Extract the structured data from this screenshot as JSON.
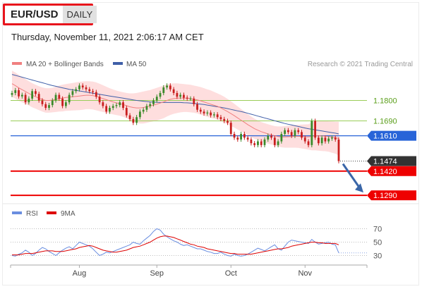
{
  "header": {
    "pair": "EUR/USD",
    "period": "DAILY",
    "timestamp": "Thursday, November 11, 2021 2:06:17 AM CET"
  },
  "colors": {
    "title_border": "#e8141c",
    "ma20": "#f08080",
    "ma50": "#3f5fa8",
    "bands_fill": "#fdd3d3",
    "green_level": "#9acd59",
    "green_label": "#5a9e1a",
    "blue_level": "#2864d8",
    "red_level": "#ee0000",
    "rsi": "#6a8ee0",
    "rsi_ma": "#dd0000",
    "candle_up": "#3a8a2a",
    "candle_down": "#c81e1e"
  },
  "chart_data": {
    "type": "candlestick",
    "legend": {
      "ma20_label": "MA 20 + Bollinger Bands",
      "ma50_label": "MA 50",
      "credit": "Research © 2021 Trading Central"
    },
    "ylim": [
      1.126,
      1.198
    ],
    "x_ticks": [
      {
        "label": "Aug",
        "index": 20
      },
      {
        "label": "Sep",
        "index": 43
      },
      {
        "label": "Oct",
        "index": 65
      },
      {
        "label": "Nov",
        "index": 87
      }
    ],
    "levels": [
      {
        "value": 1.18,
        "label": "1.1800",
        "kind": "resistance"
      },
      {
        "value": 1.169,
        "label": "1.1690",
        "kind": "resistance"
      },
      {
        "value": 1.161,
        "label": "1.1610",
        "kind": "pivot"
      },
      {
        "value": 1.142,
        "label": "1.1420",
        "kind": "support"
      },
      {
        "value": 1.129,
        "label": "1.1290",
        "kind": "support"
      }
    ],
    "last_price": {
      "value": 1.1474,
      "label": "1.1474"
    },
    "close": [
      1.184,
      1.1855,
      1.1822,
      1.183,
      1.179,
      1.181,
      1.185,
      1.1835,
      1.18,
      1.178,
      1.176,
      1.1775,
      1.18,
      1.183,
      1.181,
      1.177,
      1.179,
      1.183,
      1.185,
      1.186,
      1.188,
      1.187,
      1.186,
      1.185,
      1.1845,
      1.182,
      1.179,
      1.177,
      1.174,
      1.176,
      1.177,
      1.1775,
      1.179,
      1.176,
      1.172,
      1.17,
      1.168,
      1.171,
      1.174,
      1.175,
      1.177,
      1.178,
      1.18,
      1.182,
      1.184,
      1.187,
      1.188,
      1.186,
      1.184,
      1.182,
      1.183,
      1.1815,
      1.181,
      1.181,
      1.178,
      1.175,
      1.174,
      1.173,
      1.1735,
      1.172,
      1.1725,
      1.171,
      1.17,
      1.169,
      1.168,
      1.162,
      1.16,
      1.159,
      1.162,
      1.16,
      1.159,
      1.157,
      1.156,
      1.158,
      1.156,
      1.159,
      1.161,
      1.16,
      1.156,
      1.158,
      1.162,
      1.164,
      1.163,
      1.161,
      1.164,
      1.163,
      1.16,
      1.158,
      1.156,
      1.169,
      1.16,
      1.157,
      1.16,
      1.158,
      1.1595,
      1.16,
      1.159,
      1.1474
    ],
    "ma20": [
      1.189,
      1.188,
      1.1868,
      1.1858,
      1.1848,
      1.1838,
      1.1828,
      1.182,
      1.1812,
      1.1805,
      1.18,
      1.18,
      1.1802,
      1.1806,
      1.181,
      1.1813,
      1.1816,
      1.1818,
      1.182,
      1.1822,
      1.1824,
      1.1826,
      1.1828,
      1.1828,
      1.1826,
      1.1822,
      1.1816,
      1.181,
      1.1804,
      1.1798,
      1.1792,
      1.1787,
      1.1783,
      1.1778,
      1.1772,
      1.1766,
      1.1762,
      1.176,
      1.176,
      1.1762,
      1.1766,
      1.177,
      1.1775,
      1.178,
      1.1786,
      1.1792,
      1.18,
      1.1806,
      1.181,
      1.1812,
      1.1813,
      1.1813,
      1.1812,
      1.181,
      1.1807,
      1.1803,
      1.1798,
      1.1792,
      1.1786,
      1.178,
      1.1774,
      1.1768,
      1.176,
      1.175,
      1.174,
      1.1729,
      1.1718,
      1.1706,
      1.1694,
      1.1682,
      1.167,
      1.1659,
      1.1648,
      1.164,
      1.1632,
      1.1626,
      1.162,
      1.1615,
      1.161,
      1.1606,
      1.1604,
      1.1604,
      1.1605,
      1.1606,
      1.1607,
      1.1607,
      1.1606,
      1.1605,
      1.1604,
      1.1607,
      1.161,
      1.161,
      1.1609,
      1.1608,
      1.1606,
      1.1603,
      1.16,
      1.1595
    ],
    "bb_upper": [
      1.196,
      1.195,
      1.1938,
      1.1926,
      1.1914,
      1.1903,
      1.1893,
      1.1884,
      1.1876,
      1.187,
      1.1866,
      1.1866,
      1.1868,
      1.1874,
      1.188,
      1.1885,
      1.1888,
      1.1891,
      1.1894,
      1.1897,
      1.19,
      1.1902,
      1.1903,
      1.1903,
      1.1901,
      1.1897,
      1.189,
      1.1882,
      1.1874,
      1.1866,
      1.1859,
      1.1853,
      1.1848,
      1.1844,
      1.184,
      1.1838,
      1.1838,
      1.184,
      1.1844,
      1.1848,
      1.1852,
      1.1856,
      1.1862,
      1.1868,
      1.1874,
      1.188,
      1.1886,
      1.189,
      1.1892,
      1.1892,
      1.189,
      1.1888,
      1.1886,
      1.1884,
      1.188,
      1.1876,
      1.1872,
      1.1866,
      1.186,
      1.1854,
      1.1846,
      1.1838,
      1.183,
      1.182,
      1.1808,
      1.1795,
      1.1782,
      1.1768,
      1.1754,
      1.174,
      1.1726,
      1.1714,
      1.1702,
      1.1692,
      1.1684,
      1.1678,
      1.1672,
      1.1667,
      1.1662,
      1.166,
      1.166,
      1.1662,
      1.1664,
      1.1666,
      1.1668,
      1.1669,
      1.167,
      1.1671,
      1.1672,
      1.1682,
      1.1688,
      1.169,
      1.169,
      1.1689,
      1.1688,
      1.1687,
      1.1686,
      1.1686
    ],
    "bb_lower": [
      1.182,
      1.181,
      1.1798,
      1.179,
      1.1782,
      1.1773,
      1.1763,
      1.1756,
      1.1748,
      1.174,
      1.1734,
      1.1734,
      1.1736,
      1.1738,
      1.174,
      1.1741,
      1.1744,
      1.1745,
      1.1746,
      1.1747,
      1.1748,
      1.175,
      1.1753,
      1.1753,
      1.1751,
      1.1747,
      1.1742,
      1.1738,
      1.1734,
      1.173,
      1.1725,
      1.1721,
      1.1718,
      1.1712,
      1.1704,
      1.1694,
      1.1686,
      1.168,
      1.1676,
      1.1676,
      1.168,
      1.1684,
      1.1688,
      1.1692,
      1.1698,
      1.1704,
      1.1714,
      1.1722,
      1.1728,
      1.1732,
      1.1736,
      1.1738,
      1.1738,
      1.1736,
      1.1734,
      1.173,
      1.1724,
      1.1718,
      1.1712,
      1.1706,
      1.1702,
      1.1698,
      1.169,
      1.168,
      1.1672,
      1.1663,
      1.1654,
      1.1644,
      1.1634,
      1.1624,
      1.1614,
      1.1604,
      1.1594,
      1.1588,
      1.158,
      1.1574,
      1.1568,
      1.1563,
      1.1558,
      1.1552,
      1.1548,
      1.1546,
      1.1546,
      1.1546,
      1.1546,
      1.1545,
      1.1542,
      1.1539,
      1.1536,
      1.1532,
      1.1532,
      1.153,
      1.1528,
      1.1527,
      1.1524,
      1.1519,
      1.1514,
      1.1504
    ],
    "ma50": [
      1.194,
      1.1935,
      1.193,
      1.1925,
      1.192,
      1.1915,
      1.191,
      1.1905,
      1.19,
      1.1895,
      1.189,
      1.1885,
      1.188,
      1.1876,
      1.1872,
      1.1868,
      1.1864,
      1.186,
      1.1857,
      1.1854,
      1.1851,
      1.1848,
      1.1845,
      1.1842,
      1.1839,
      1.1836,
      1.1833,
      1.183,
      1.1827,
      1.1824,
      1.1821,
      1.1818,
      1.1815,
      1.1812,
      1.1809,
      1.1806,
      1.1803,
      1.18,
      1.1798,
      1.1796,
      1.1794,
      1.1792,
      1.1791,
      1.179,
      1.1789,
      1.1789,
      1.1789,
      1.1789,
      1.1789,
      1.1789,
      1.1789,
      1.1788,
      1.1787,
      1.1786,
      1.1784,
      1.1782,
      1.178,
      1.1778,
      1.1775,
      1.1772,
      1.1769,
      1.1766,
      1.1763,
      1.176,
      1.1756,
      1.1752,
      1.1748,
      1.1744,
      1.174,
      1.1736,
      1.1731,
      1.1726,
      1.1721,
      1.1716,
      1.1711,
      1.1706,
      1.1701,
      1.1696,
      1.1691,
      1.1686,
      1.1681,
      1.1676,
      1.1672,
      1.1668,
      1.1664,
      1.166,
      1.1656,
      1.1652,
      1.1648,
      1.1645,
      1.1642,
      1.1639,
      1.1636,
      1.1633,
      1.163,
      1.1627,
      1.1624,
      1.162
    ],
    "rsi_panel": {
      "legend": {
        "rsi_label": "RSI",
        "ma_label": "9MA"
      },
      "ylim": [
        20,
        80
      ],
      "levels": [
        {
          "value": 70,
          "label": "70"
        },
        {
          "value": 50,
          "label": "50"
        },
        {
          "value": 30,
          "label": "30"
        }
      ],
      "rsi": [
        30,
        29,
        32,
        34,
        38,
        35,
        30,
        33,
        38,
        42,
        40,
        36,
        33,
        30,
        34,
        38,
        41,
        43,
        40,
        45,
        50,
        48,
        46,
        44,
        40,
        35,
        30,
        32,
        35,
        34,
        36,
        38,
        40,
        42,
        44,
        46,
        50,
        48,
        47,
        52,
        56,
        60,
        66,
        70,
        68,
        62,
        58,
        55,
        52,
        50,
        47,
        45,
        46,
        44,
        42,
        40,
        40,
        38,
        36,
        35,
        33,
        33,
        35,
        32,
        30,
        29,
        32,
        30,
        29,
        30,
        32,
        35,
        38,
        41,
        39,
        37,
        40,
        43,
        46,
        40,
        38,
        44,
        50,
        53,
        52,
        51,
        50,
        49,
        48,
        54,
        50,
        47,
        48,
        49,
        50,
        47,
        46,
        34
      ],
      "rsi_ma": [
        31,
        31,
        31,
        32,
        33,
        33,
        33,
        34,
        35,
        36,
        37,
        37,
        37,
        36,
        36,
        36,
        37,
        38,
        39,
        40,
        42,
        43,
        44,
        45,
        44,
        42,
        40,
        38,
        37,
        36,
        35,
        35,
        36,
        37,
        38,
        40,
        42,
        43,
        44,
        46,
        48,
        50,
        53,
        56,
        58,
        59,
        59,
        58,
        57,
        55,
        53,
        51,
        49,
        47,
        46,
        44,
        43,
        42,
        40,
        39,
        38,
        37,
        36,
        35,
        34,
        33,
        33,
        32,
        32,
        32,
        32,
        32,
        33,
        34,
        35,
        36,
        37,
        38,
        39,
        40,
        40,
        41,
        42,
        44,
        45,
        46,
        47,
        48,
        49,
        50,
        50,
        49,
        49,
        48,
        48,
        48,
        48,
        46
      ]
    }
  }
}
